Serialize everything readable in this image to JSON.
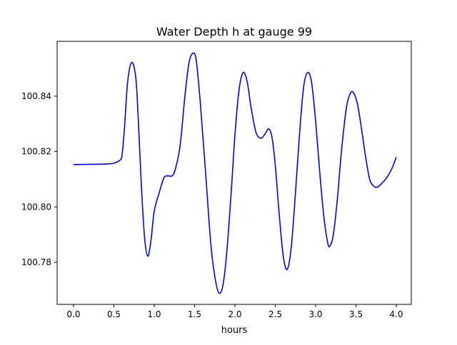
{
  "chart_data": {
    "type": "line",
    "title": "Water Depth h at gauge 99",
    "xlabel": "hours",
    "ylabel": "",
    "xlim": [
      -0.2035,
      4.186
    ],
    "ylim": [
      100.7648,
      100.8598
    ],
    "xticks": [
      0.0,
      0.5,
      1.0,
      1.5,
      2.0,
      2.5,
      3.0,
      3.5,
      4.0
    ],
    "xtick_labels": [
      "0.0",
      "0.5",
      "1.0",
      "1.5",
      "2.0",
      "2.5",
      "3.0",
      "3.5",
      "4.0"
    ],
    "yticks": [
      100.78,
      100.8,
      100.82,
      100.84
    ],
    "ytick_labels": [
      "100.78",
      "100.80",
      "100.82",
      "100.84"
    ],
    "grid": false,
    "series": [
      {
        "name": "h",
        "color": "#0000ff",
        "x": [
          0,
          0.4,
          0.5,
          0.57,
          0.6,
          0.63,
          0.67,
          0.72,
          0.77,
          0.8,
          0.84,
          0.88,
          0.92,
          0.96,
          1.0,
          1.06,
          1.12,
          1.17,
          1.22,
          1.26,
          1.32,
          1.38,
          1.43,
          1.48,
          1.52,
          1.57,
          1.63,
          1.7,
          1.75,
          1.8,
          1.85,
          1.9,
          1.96,
          2.0,
          2.05,
          2.1,
          2.15,
          2.2,
          2.26,
          2.32,
          2.37,
          2.42,
          2.46,
          2.5,
          2.55,
          2.6,
          2.65,
          2.7,
          2.75,
          2.8,
          2.85,
          2.9,
          2.95,
          3.0,
          3.05,
          3.1,
          3.15,
          3.18,
          3.22,
          3.27,
          3.32,
          3.38,
          3.43,
          3.47,
          3.52,
          3.57,
          3.62,
          3.67,
          3.72,
          3.77,
          3.82,
          3.88,
          3.94,
          4.0
        ],
        "y": [
          100.8153,
          100.8155,
          100.8158,
          100.8168,
          100.8185,
          100.828,
          100.845,
          100.8522,
          100.847,
          100.833,
          100.808,
          100.789,
          100.7822,
          100.788,
          100.7985,
          100.805,
          100.8105,
          100.8112,
          100.8112,
          100.8135,
          100.822,
          100.84,
          100.852,
          100.8555,
          100.853,
          100.838,
          100.815,
          100.787,
          100.775,
          100.769,
          100.7715,
          100.784,
          100.808,
          100.826,
          100.842,
          100.8485,
          100.8455,
          100.836,
          100.827,
          100.8248,
          100.8262,
          100.8282,
          100.825,
          100.815,
          100.797,
          100.782,
          100.7775,
          100.786,
          100.805,
          100.826,
          100.843,
          100.8485,
          100.845,
          100.831,
          100.813,
          100.797,
          100.787,
          100.786,
          100.79,
          100.803,
          100.82,
          100.8355,
          100.841,
          100.8412,
          100.837,
          100.828,
          100.818,
          100.81,
          100.8075,
          100.8072,
          100.8085,
          100.8105,
          100.8135,
          100.818
        ]
      }
    ]
  }
}
